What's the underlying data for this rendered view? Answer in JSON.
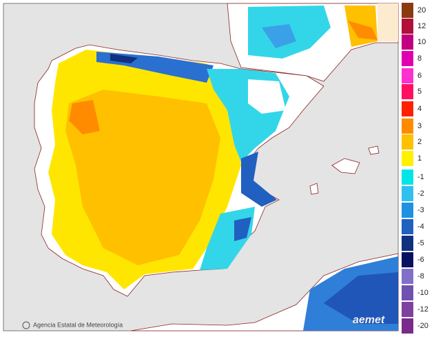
{
  "legend": {
    "items": [
      {
        "label": 20,
        "color": "#8b3a10"
      },
      {
        "label": 12,
        "color": "#b0103a"
      },
      {
        "label": 10,
        "color": "#c00080"
      },
      {
        "label": 8,
        "color": "#e000b0"
      },
      {
        "label": 6,
        "color": "#ff30d0"
      },
      {
        "label": 5,
        "color": "#ff1060"
      },
      {
        "label": 4,
        "color": "#ff2000"
      },
      {
        "label": 3,
        "color": "#ff8c00"
      },
      {
        "label": 2,
        "color": "#ffc000"
      },
      {
        "label": 1,
        "color": "#fff000"
      },
      {
        "label": -1,
        "color": "#00e5e5"
      },
      {
        "label": -2,
        "color": "#30c0f0"
      },
      {
        "label": -3,
        "color": "#2090e0"
      },
      {
        "label": -4,
        "color": "#2060c0"
      },
      {
        "label": -5,
        "color": "#103080"
      },
      {
        "label": -6,
        "color": "#0a1060"
      },
      {
        "label": -8,
        "color": "#8070c8"
      },
      {
        "label": -10,
        "color": "#7050b0"
      },
      {
        "label": -12,
        "color": "#8040a0"
      },
      {
        "label": -20,
        "color": "#7a2a8a"
      }
    ]
  },
  "footer": {
    "credit": "Agencia Estatal de Meteorología",
    "logo": "aemet"
  }
}
